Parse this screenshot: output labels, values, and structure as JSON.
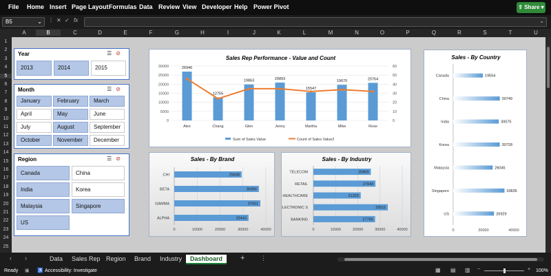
{
  "menu": {
    "items": [
      "File",
      "Home",
      "Insert",
      "Page Layout",
      "Formulas",
      "Data",
      "Review",
      "View",
      "Developer",
      "Help",
      "Power Pivot"
    ],
    "share": "Share"
  },
  "formula_bar": {
    "name_box": "B5",
    "fx": "fx"
  },
  "columns": [
    "A",
    "B",
    "C",
    "D",
    "E",
    "F",
    "G",
    "H",
    "I",
    "J",
    "K",
    "L",
    "M",
    "N",
    "O",
    "P",
    "Q",
    "R",
    "S",
    "T",
    "U"
  ],
  "rows": [
    "1",
    "2",
    "3",
    "4",
    "5",
    "6",
    "7",
    "8",
    "9",
    "10",
    "11",
    "12",
    "13",
    "14",
    "15",
    "16",
    "17",
    "18",
    "19",
    "20",
    "21",
    "22",
    "23",
    "24",
    "25"
  ],
  "slicers": {
    "year": {
      "title": "Year",
      "items": [
        {
          "label": "2013",
          "selected": true
        },
        {
          "label": "2014",
          "selected": true
        },
        {
          "label": "2015",
          "selected": false
        }
      ]
    },
    "month": {
      "title": "Month",
      "items": [
        {
          "label": "January",
          "selected": true
        },
        {
          "label": "February",
          "selected": true
        },
        {
          "label": "March",
          "selected": true
        },
        {
          "label": "April",
          "selected": false
        },
        {
          "label": "May",
          "selected": true
        },
        {
          "label": "June",
          "selected": false
        },
        {
          "label": "July",
          "selected": false
        },
        {
          "label": "August",
          "selected": true
        },
        {
          "label": "September",
          "selected": false
        },
        {
          "label": "October",
          "selected": true
        },
        {
          "label": "November",
          "selected": true
        },
        {
          "label": "December",
          "selected": false
        }
      ]
    },
    "region": {
      "title": "Region",
      "items": [
        {
          "label": "Canada",
          "selected": true
        },
        {
          "label": "China",
          "selected": false
        },
        {
          "label": "India",
          "selected": true
        },
        {
          "label": "Korea",
          "selected": false
        },
        {
          "label": "Malaysia",
          "selected": true
        },
        {
          "label": "Singapore",
          "selected": true
        },
        {
          "label": "US",
          "selected": true
        }
      ]
    }
  },
  "chart_data": [
    {
      "type": "bar",
      "title": "Sales Rep Performance  - Value and Count",
      "categories": [
        "Alex",
        "Chang",
        "Glen",
        "Jenny",
        "Martha",
        "Mike",
        "Rose"
      ],
      "series": [
        {
          "name": "Sum of Sales Value",
          "type": "bar",
          "values": [
            26946,
            12755,
            19863,
            20893,
            15547,
            19670,
            20764
          ],
          "color": "#5b9bd5"
        },
        {
          "name": "Count of Sales Value2",
          "type": "line",
          "values": [
            46,
            24,
            35,
            35,
            32,
            34,
            32
          ],
          "color": "#ed7d31",
          "axis": "secondary"
        }
      ],
      "y_ticks": [
        "0",
        "5000",
        "10000",
        "15000",
        "20000",
        "25000",
        "30000"
      ],
      "ylim": [
        0,
        30000
      ],
      "y2_ticks": [
        "0",
        "10",
        "20",
        "30",
        "40",
        "50",
        "60"
      ],
      "y2lim": [
        0,
        60
      ],
      "legend": "bottom"
    },
    {
      "type": "bar",
      "orientation": "horizontal",
      "title": "Sales  - By Brand",
      "categories": [
        "CHI",
        "BETA",
        "GAMMA",
        "ALPHA"
      ],
      "values": [
        29438,
        36956,
        37601,
        32443
      ],
      "x_ticks": [
        "0",
        "10000",
        "20000",
        "30000",
        "40000"
      ],
      "xlim": [
        0,
        40000
      ]
    },
    {
      "type": "bar",
      "orientation": "horizontal",
      "title": "Sales  - By Industry",
      "categories": [
        "TELECOM",
        "RETAIL",
        "HEALTHCARE",
        "ELECTRONIC S",
        "BANKING"
      ],
      "values": [
        25869,
        27943,
        21320,
        33511,
        27795
      ],
      "x_ticks": [
        "0",
        "10000",
        "20000",
        "30000",
        "40000"
      ],
      "xlim": [
        0,
        40000
      ]
    },
    {
      "type": "bar",
      "orientation": "horizontal",
      "title": "Sales  - By Country",
      "categories": [
        "Canada",
        "China",
        "India",
        "Korea",
        "Malaysia",
        "Singapore",
        "US"
      ],
      "values": [
        19554,
        30749,
        30075,
        30728,
        26045,
        33835,
        26929
      ],
      "x_ticks": [
        "0",
        "20000",
        "40000"
      ],
      "xlim": [
        0,
        40000
      ]
    }
  ],
  "tabs": {
    "items": [
      "Data",
      "Sales Rep",
      "Region",
      "Brand",
      "Industry",
      "Dashboard"
    ],
    "active": "Dashboard",
    "add": "+"
  },
  "status": {
    "ready": "Ready",
    "accessibility": "Accessibility: Investigate",
    "zoom": "100%"
  }
}
